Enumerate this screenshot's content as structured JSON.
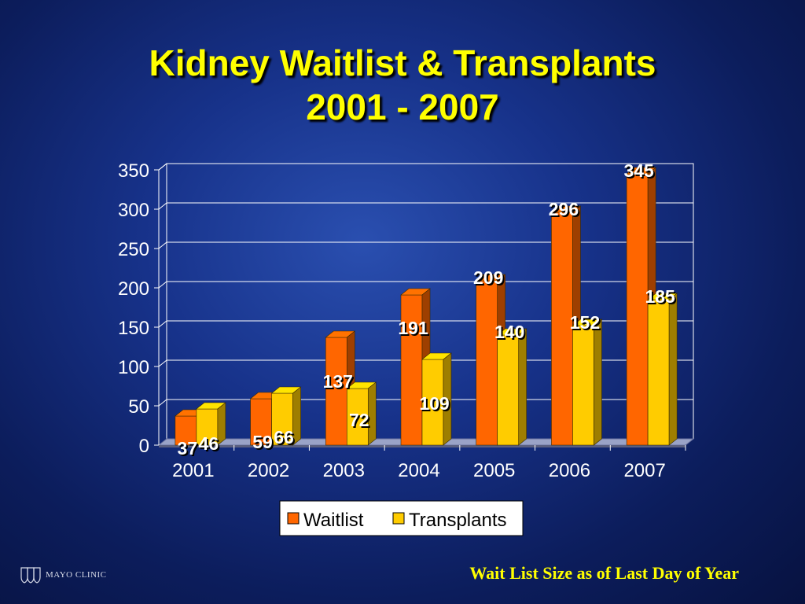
{
  "chart_data": {
    "type": "bar",
    "title": [
      "Kidney Waitlist & Transplants",
      "2001 - 2007"
    ],
    "categories": [
      "2001",
      "2002",
      "2003",
      "2004",
      "2005",
      "2006",
      "2007"
    ],
    "series": [
      {
        "name": "Waitlist",
        "values": [
          37,
          59,
          137,
          191,
          209,
          296,
          345
        ],
        "color": "#ff6600"
      },
      {
        "name": "Transplants",
        "values": [
          46,
          66,
          72,
          109,
          140,
          152,
          185
        ],
        "color": "#ffcc00"
      }
    ],
    "ylim": [
      0,
      350
    ],
    "yticks": [
      "0",
      "50",
      "100",
      "150",
      "200",
      "250",
      "300",
      "350"
    ],
    "grid": true,
    "legend_position": "bottom"
  },
  "footnote": "Wait List Size as of Last Day of Year",
  "logo": {
    "text": "MAYO CLINIC",
    "icon": "mayo-shield-icon"
  }
}
